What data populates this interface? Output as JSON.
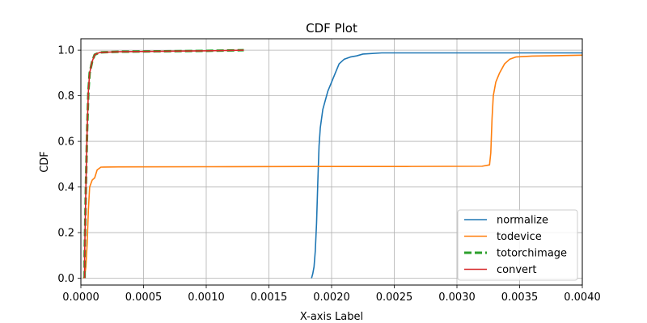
{
  "chart_data": {
    "type": "line",
    "title": "CDF Plot",
    "xlabel": "X-axis Label",
    "ylabel": "CDF",
    "xlim": [
      0.0,
      0.004
    ],
    "ylim": [
      -0.03,
      1.05
    ],
    "x_ticks": [
      "0.0000",
      "0.0005",
      "0.0010",
      "0.0015",
      "0.0020",
      "0.0025",
      "0.0030",
      "0.0035",
      "0.0040"
    ],
    "y_ticks": [
      "0.0",
      "0.2",
      "0.4",
      "0.6",
      "0.8",
      "1.0"
    ],
    "grid": true,
    "legend_position": "lower-right",
    "series": [
      {
        "name": "normalize",
        "color": "#1f77b4",
        "dashed": false,
        "points": [
          [
            0.00184,
            0.0
          ],
          [
            0.00185,
            0.02
          ],
          [
            0.00186,
            0.05
          ],
          [
            0.00187,
            0.12
          ],
          [
            0.00188,
            0.24
          ],
          [
            0.00189,
            0.42
          ],
          [
            0.0019,
            0.58
          ],
          [
            0.00191,
            0.66
          ],
          [
            0.00193,
            0.74
          ],
          [
            0.00195,
            0.78
          ],
          [
            0.00197,
            0.82
          ],
          [
            0.002,
            0.86
          ],
          [
            0.00203,
            0.9
          ],
          [
            0.00206,
            0.94
          ],
          [
            0.0021,
            0.96
          ],
          [
            0.00215,
            0.97
          ],
          [
            0.0022,
            0.975
          ],
          [
            0.00225,
            0.983
          ],
          [
            0.0024,
            0.988
          ],
          [
            0.0025,
            0.988
          ],
          [
            0.004,
            0.988
          ]
        ]
      },
      {
        "name": "todevice",
        "color": "#ff7f0e",
        "dashed": false,
        "points": [
          [
            2e-05,
            0.0
          ],
          [
            3e-05,
            0.01
          ],
          [
            4e-05,
            0.05
          ],
          [
            5e-05,
            0.15
          ],
          [
            6e-05,
            0.3
          ],
          [
            7e-05,
            0.4
          ],
          [
            9e-05,
            0.43
          ],
          [
            0.00011,
            0.44
          ],
          [
            0.00013,
            0.475
          ],
          [
            0.00016,
            0.487
          ],
          [
            0.0003,
            0.488
          ],
          [
            0.0012,
            0.489
          ],
          [
            0.002,
            0.49
          ],
          [
            0.0026,
            0.49
          ],
          [
            0.0032,
            0.491
          ],
          [
            0.00326,
            0.497
          ],
          [
            0.00327,
            0.55
          ],
          [
            0.00328,
            0.7
          ],
          [
            0.00329,
            0.8
          ],
          [
            0.00331,
            0.86
          ],
          [
            0.00334,
            0.9
          ],
          [
            0.00338,
            0.94
          ],
          [
            0.00342,
            0.96
          ],
          [
            0.00347,
            0.97
          ],
          [
            0.0036,
            0.974
          ],
          [
            0.0038,
            0.976
          ],
          [
            0.004,
            0.978
          ]
        ]
      },
      {
        "name": "totorchimage",
        "color": "#2ca02c",
        "dashed": true,
        "points": [
          [
            3e-05,
            0.0
          ],
          [
            3e-05,
            0.1
          ],
          [
            4e-05,
            0.4
          ],
          [
            5e-05,
            0.65
          ],
          [
            6e-05,
            0.82
          ],
          [
            7e-05,
            0.9
          ],
          [
            9e-05,
            0.95
          ],
          [
            0.00011,
            0.98
          ],
          [
            0.00015,
            0.99
          ],
          [
            0.0003,
            0.993
          ],
          [
            0.0006,
            0.995
          ],
          [
            0.001,
            0.997
          ],
          [
            0.0013,
            1.0
          ]
        ]
      },
      {
        "name": "convert",
        "color": "#d62728",
        "dashed": false,
        "points": [
          [
            3e-05,
            0.0
          ],
          [
            3e-05,
            0.1
          ],
          [
            4e-05,
            0.4
          ],
          [
            5e-05,
            0.65
          ],
          [
            6e-05,
            0.82
          ],
          [
            7e-05,
            0.9
          ],
          [
            9e-05,
            0.95
          ],
          [
            0.00011,
            0.98
          ],
          [
            0.00015,
            0.99
          ],
          [
            0.0003,
            0.993
          ],
          [
            0.0006,
            0.995
          ],
          [
            0.001,
            0.997
          ],
          [
            0.0013,
            1.0
          ]
        ]
      }
    ]
  }
}
